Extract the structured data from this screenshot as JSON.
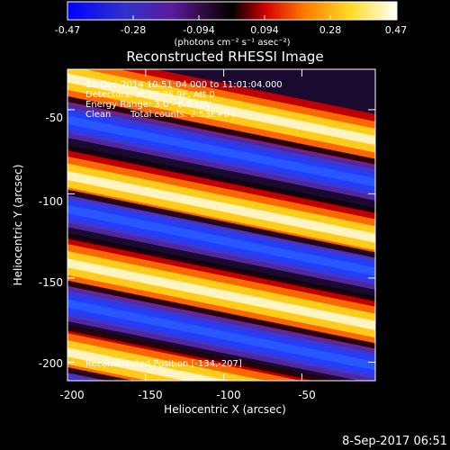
{
  "colorbar": {
    "ticks": [
      "-0.47",
      "-0.28",
      "-0.094",
      "0.094",
      "0.28",
      "0.47"
    ],
    "unit_label": "(photons cm⁻² s⁻¹ asec⁻²)"
  },
  "annotations": {
    "time_range": "15-Dec-2014 10:51:04.000 to 11:01:04.000",
    "detectors": "Detectors: 3F 6F 7F 9F, Att 0",
    "energy_range": "Energy Range: 3.0 - 6.0 keV",
    "clean": "Clean",
    "total_counts": "Total counts: 2.53E+04",
    "footer_label": "Reconstructed Position [-134,-207]"
  },
  "footer_date": "8-Sep-2017 06:51",
  "colors": {
    "background": "#000000",
    "colormap": [
      "#0000ff",
      "#3333cc",
      "#5a1a9c",
      "#2a0a3a",
      "#000000",
      "#d20000",
      "#ff7a00",
      "#ffdc28",
      "#ffffff"
    ]
  },
  "chart_data": {
    "type": "heatmap",
    "title": "Reconstructed RHESSI Image",
    "xlabel": "Heliocentric X (arcsec)",
    "ylabel": "Heliocentric Y (arcsec)",
    "xlim": [
      -200,
      -3
    ],
    "ylim": [
      -211,
      -26
    ],
    "xticks": [
      -200,
      -150,
      -100,
      -50
    ],
    "yticks": [
      -50,
      -100,
      -150,
      -200
    ],
    "xtick_labels": [
      "-200",
      "-150",
      "-100",
      "-50"
    ],
    "ytick_labels": [
      "-50",
      "-100",
      "-150",
      "-200"
    ],
    "colorbar_range": [
      -0.47,
      0.47
    ],
    "band_slope": -0.2,
    "bands": [
      {
        "kind": "positive",
        "y_at_x200": -30,
        "value": 0.47
      },
      {
        "kind": "negative",
        "y_at_x200": -55,
        "value": -0.45
      },
      {
        "kind": "positive",
        "y_at_x200": -88,
        "value": 0.36
      },
      {
        "kind": "negative",
        "y_at_x200": -108,
        "value": -0.45
      },
      {
        "kind": "positive",
        "y_at_x200": -140,
        "value": 0.47
      },
      {
        "kind": "negative",
        "y_at_x200": -164,
        "value": -0.42
      },
      {
        "kind": "positive",
        "y_at_x200": -193,
        "value": 0.42
      },
      {
        "kind": "negative",
        "y_at_x200": -214,
        "value": -0.35
      }
    ]
  }
}
